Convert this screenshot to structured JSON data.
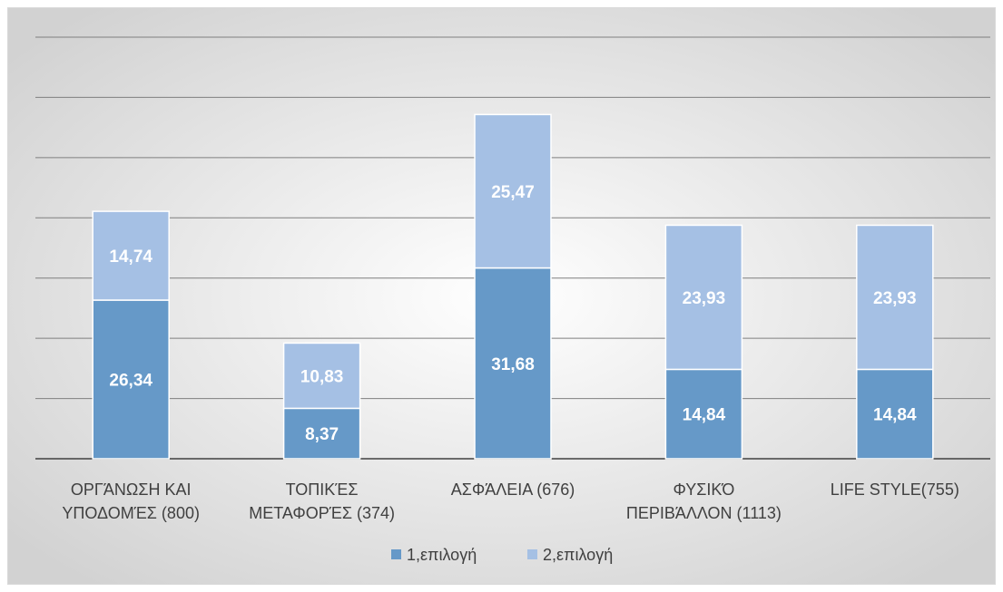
{
  "chart_data": {
    "type": "bar",
    "stacked": true,
    "categories": [
      [
        "ΟΡΓΆΝΩΣΗ ΚΑΙ",
        "ΥΠΟΔΟΜΈΣ (800)"
      ],
      [
        "ΤΟΠΙΚΈΣ",
        "ΜΕΤΑΦΟΡΈΣ (374)"
      ],
      [
        "ΑΣΦΆΛΕΙΑ (676)"
      ],
      [
        "ΦΥΣΙΚΌ",
        "ΠΕΡΙΒΆΛΛΟΝ (1113)"
      ],
      [
        "LIFE STYLE(755)"
      ]
    ],
    "series": [
      {
        "name": "1,επιλογή",
        "values": [
          26.34,
          8.37,
          31.68,
          14.84,
          14.84
        ],
        "labels": [
          "26,34",
          "8,37",
          "31,68",
          "14,84",
          "14,84"
        ],
        "color": "#6699c8"
      },
      {
        "name": "2,επιλογή",
        "values": [
          14.74,
          10.83,
          25.47,
          23.93,
          23.93
        ],
        "labels": [
          "14,74",
          "10,83",
          "25,47",
          "23,93",
          "23,93"
        ],
        "color": "#a5c0e4"
      }
    ],
    "ylim": [
      0,
      70
    ],
    "ytick_step": 10,
    "grid": true,
    "legend_position": "bottom",
    "title": "",
    "xlabel": "",
    "ylabel": ""
  },
  "colors": {
    "background_center": "#ffffff",
    "background_edge": "#d2d2d2",
    "gridline": "#7f7f7f",
    "axis": "#404040"
  }
}
